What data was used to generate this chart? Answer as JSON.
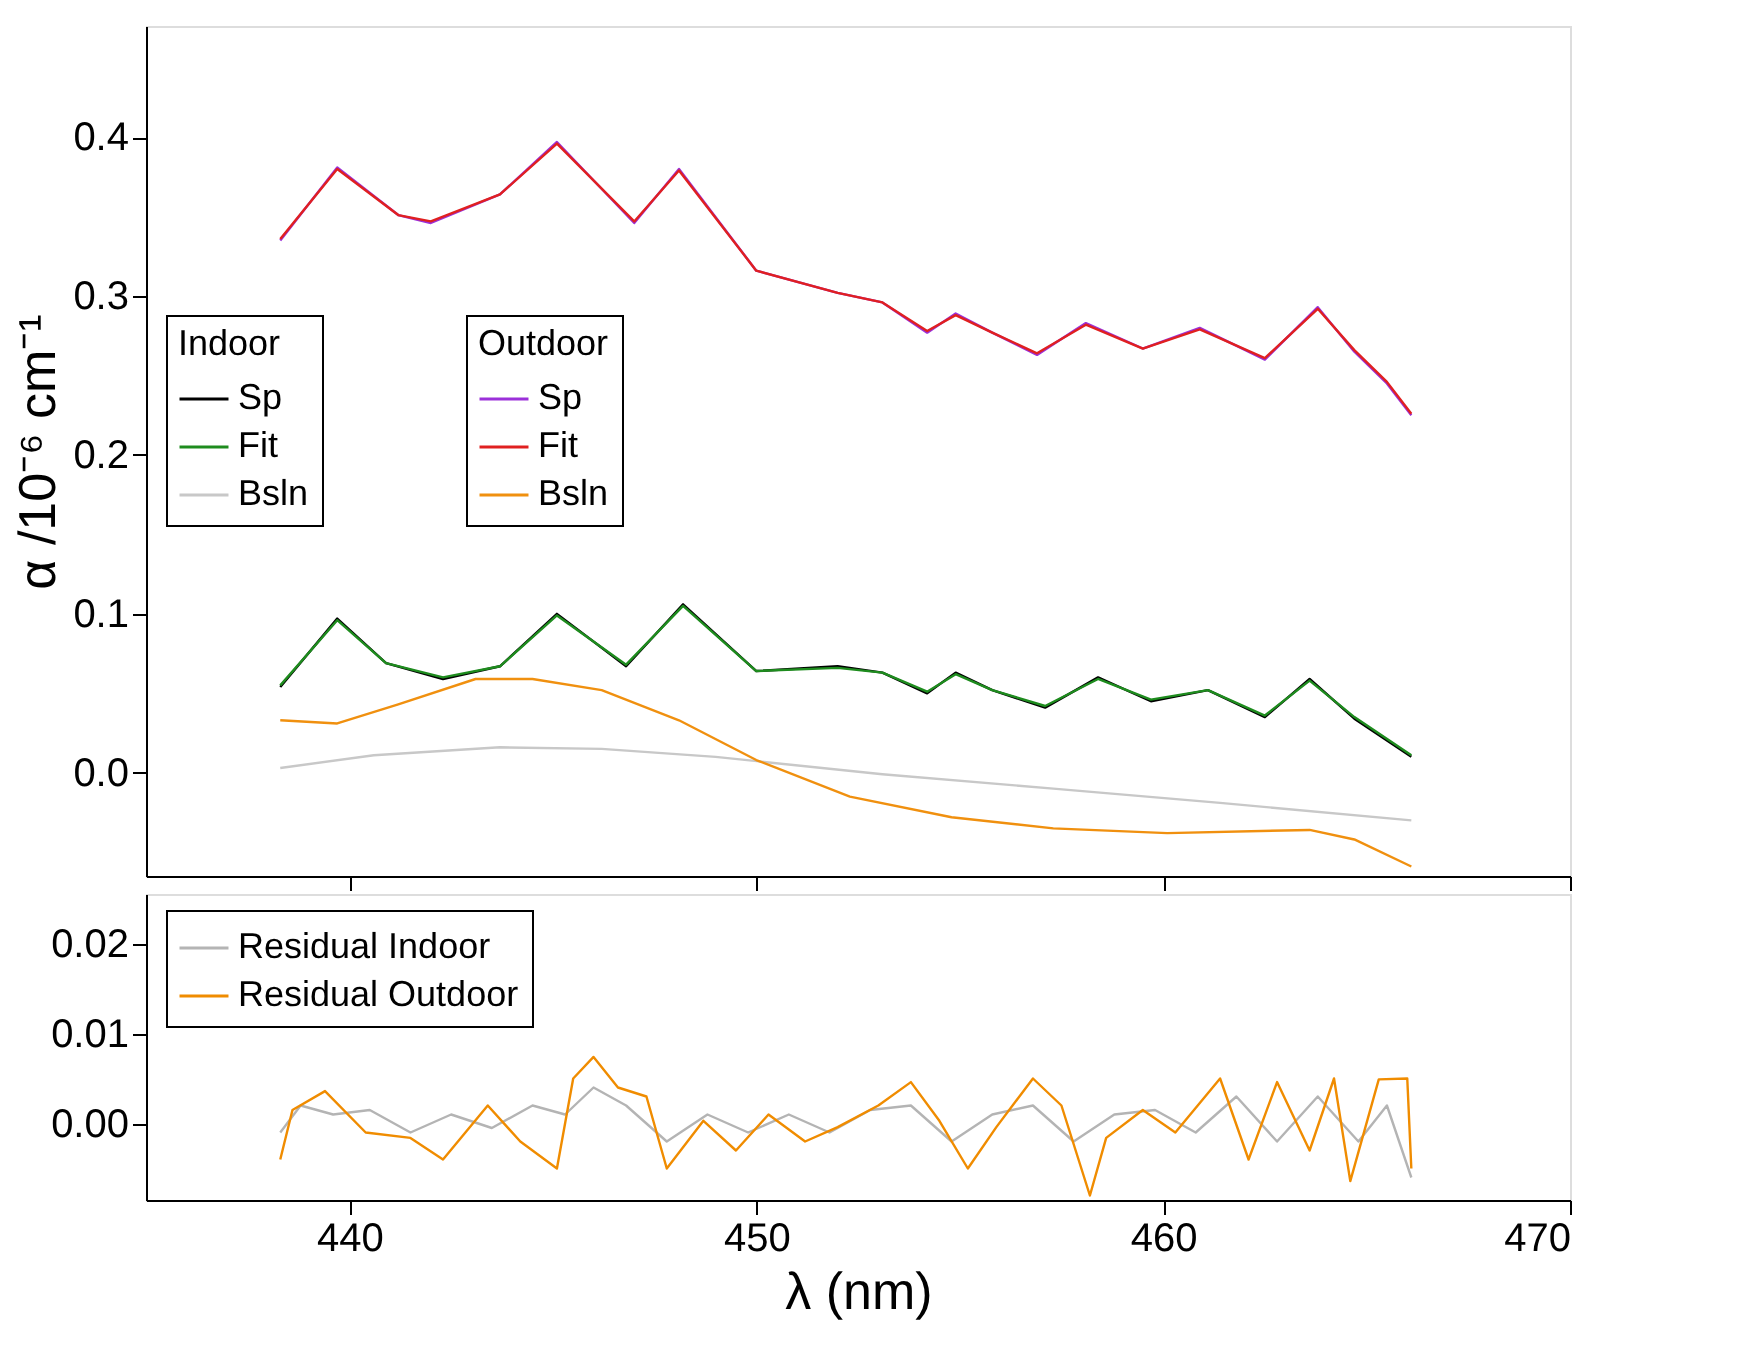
{
  "chart_data": [
    {
      "type": "line",
      "ylabel": "α /10⁻⁶ cm⁻¹",
      "legend_title": [
        "Indoor",
        "Outdoor"
      ],
      "legend": "left",
      "grid": false,
      "tick_labels": "y",
      "xlim": [
        435,
        470
      ],
      "xticks": [
        440,
        450,
        460,
        470
      ],
      "ylim": [
        -0.065,
        0.47
      ],
      "yticks": [
        {
          "value": 0,
          "label": "0.0"
        },
        0.1,
        0.2,
        0.3,
        0.4
      ],
      "series": [
        {
          "name": "Sp",
          "color": "#000000",
          "x": [
            438.3,
            439.7,
            440.9,
            442.3,
            443.7,
            445.1,
            446.8,
            448.2,
            450.0,
            452.0,
            453.1,
            454.2,
            454.9,
            455.8,
            457.1,
            458.4,
            459.7,
            461.1,
            462.5,
            463.6,
            464.7,
            466.1
          ],
          "values": [
            0.054,
            0.097,
            0.069,
            0.059,
            0.067,
            0.1,
            0.067,
            0.106,
            0.064,
            0.067,
            0.063,
            0.05,
            0.063,
            0.052,
            0.041,
            0.06,
            0.045,
            0.052,
            0.035,
            0.059,
            0.034,
            0.01
          ]
        },
        {
          "name": "Fit",
          "color": "#1e8c1e",
          "x": [
            438.3,
            439.7,
            440.9,
            442.3,
            443.7,
            445.1,
            446.8,
            448.2,
            450.0,
            452.0,
            453.1,
            454.2,
            454.9,
            455.8,
            457.1,
            458.4,
            459.7,
            461.1,
            462.5,
            463.6,
            464.7,
            466.1
          ],
          "values": [
            0.055,
            0.096,
            0.069,
            0.06,
            0.067,
            0.099,
            0.068,
            0.105,
            0.064,
            0.066,
            0.063,
            0.051,
            0.062,
            0.052,
            0.042,
            0.059,
            0.046,
            0.052,
            0.036,
            0.058,
            0.035,
            0.011
          ]
        },
        {
          "name": "Bsln",
          "color": "#c8c8c8",
          "x": [
            438.3,
            440.6,
            443.7,
            446.2,
            449.0,
            453.1,
            457.3,
            461.4,
            466.1
          ],
          "values": [
            0.003,
            0.011,
            0.016,
            0.015,
            0.01,
            -0.001,
            -0.01,
            -0.019,
            -0.03
          ]
        },
        {
          "name": "Sp",
          "color": "#9b30d9",
          "x": [
            438.3,
            439.7,
            441.2,
            442.0,
            443.7,
            445.1,
            447.0,
            448.1,
            450.0,
            452.0,
            453.1,
            454.2,
            454.9,
            455.8,
            456.9,
            458.1,
            459.5,
            460.9,
            462.5,
            463.8,
            464.7,
            465.5,
            466.1
          ],
          "values": [
            0.335,
            0.381,
            0.351,
            0.346,
            0.364,
            0.397,
            0.346,
            0.38,
            0.316,
            0.302,
            0.296,
            0.277,
            0.289,
            0.277,
            0.263,
            0.283,
            0.267,
            0.28,
            0.26,
            0.293,
            0.265,
            0.245,
            0.225
          ]
        },
        {
          "name": "Fit",
          "color": "#e02020",
          "x": [
            438.3,
            439.7,
            441.2,
            442.0,
            443.7,
            445.1,
            447.0,
            448.1,
            450.0,
            452.0,
            453.1,
            454.2,
            454.9,
            455.8,
            456.9,
            458.1,
            459.5,
            460.9,
            462.5,
            463.8,
            464.7,
            465.5,
            466.1
          ],
          "values": [
            0.336,
            0.38,
            0.351,
            0.347,
            0.364,
            0.396,
            0.347,
            0.379,
            0.316,
            0.302,
            0.296,
            0.278,
            0.288,
            0.277,
            0.264,
            0.282,
            0.267,
            0.279,
            0.261,
            0.292,
            0.266,
            0.246,
            0.226
          ]
        },
        {
          "name": "Bsln",
          "color": "#f0900f",
          "x": [
            438.3,
            439.7,
            441.2,
            443.1,
            444.5,
            446.2,
            448.1,
            450.0,
            452.3,
            454.8,
            457.3,
            460.1,
            463.6,
            464.7,
            466.1
          ],
          "values": [
            0.033,
            0.031,
            0.043,
            0.059,
            0.059,
            0.052,
            0.033,
            0.008,
            -0.015,
            -0.028,
            -0.035,
            -0.038,
            -0.036,
            -0.042,
            -0.059
          ]
        }
      ]
    },
    {
      "type": "line",
      "xlabel": "λ (nm)",
      "legend": "top left",
      "grid": false,
      "xlim": [
        435,
        470
      ],
      "xticks": [
        440,
        450,
        460,
        470
      ],
      "ylim": [
        -0.0085,
        0.0255
      ],
      "yticks": [
        {
          "value": 0,
          "label": "0.00"
        },
        0.01,
        0.02
      ],
      "series": [
        {
          "name": "Residual Indoor",
          "color": "#b4b4b4",
          "x": [
            438.3,
            438.8,
            439.6,
            440.5,
            441.5,
            442.5,
            443.5,
            444.5,
            445.3,
            446.0,
            446.8,
            447.8,
            448.8,
            449.8,
            450.8,
            451.8,
            452.8,
            453.8,
            454.8,
            455.8,
            456.8,
            457.8,
            458.8,
            459.8,
            460.8,
            461.8,
            462.8,
            463.8,
            464.8,
            465.5,
            466.1
          ],
          "values": [
            -0.001,
            0.002,
            0.001,
            0.0015,
            -0.001,
            0.001,
            -0.0005,
            0.002,
            0.001,
            0.004,
            0.002,
            -0.002,
            0.001,
            -0.001,
            0.001,
            -0.001,
            0.0015,
            0.002,
            -0.002,
            0.001,
            0.002,
            -0.002,
            0.001,
            0.0015,
            -0.001,
            0.003,
            -0.002,
            0.003,
            -0.002,
            0.002,
            -0.006
          ]
        },
        {
          "name": "Residual Outdoor",
          "color": "#f08c00",
          "x": [
            438.3,
            438.6,
            439.4,
            440.4,
            441.5,
            442.3,
            443.4,
            444.2,
            445.1,
            445.5,
            446.0,
            446.6,
            447.3,
            447.8,
            448.7,
            449.5,
            450.3,
            451.2,
            452.0,
            453.0,
            453.8,
            454.5,
            455.2,
            455.9,
            456.8,
            457.5,
            458.2,
            458.6,
            459.5,
            460.3,
            461.4,
            462.1,
            462.8,
            463.6,
            464.2,
            464.6,
            465.3,
            466.0,
            466.1
          ],
          "values": [
            -0.004,
            0.0015,
            0.0036,
            -0.001,
            -0.0016,
            -0.004,
            0.002,
            -0.002,
            -0.005,
            0.005,
            0.0074,
            0.004,
            0.003,
            -0.005,
            0.0003,
            -0.003,
            0.001,
            -0.002,
            -0.0004,
            0.002,
            0.0046,
            0.0003,
            -0.005,
            -0.0004,
            0.005,
            0.002,
            -0.008,
            -0.0016,
            0.0015,
            -0.001,
            0.005,
            -0.004,
            0.0046,
            -0.003,
            0.005,
            -0.0064,
            0.0049,
            0.005,
            -0.005
          ]
        }
      ]
    }
  ]
}
